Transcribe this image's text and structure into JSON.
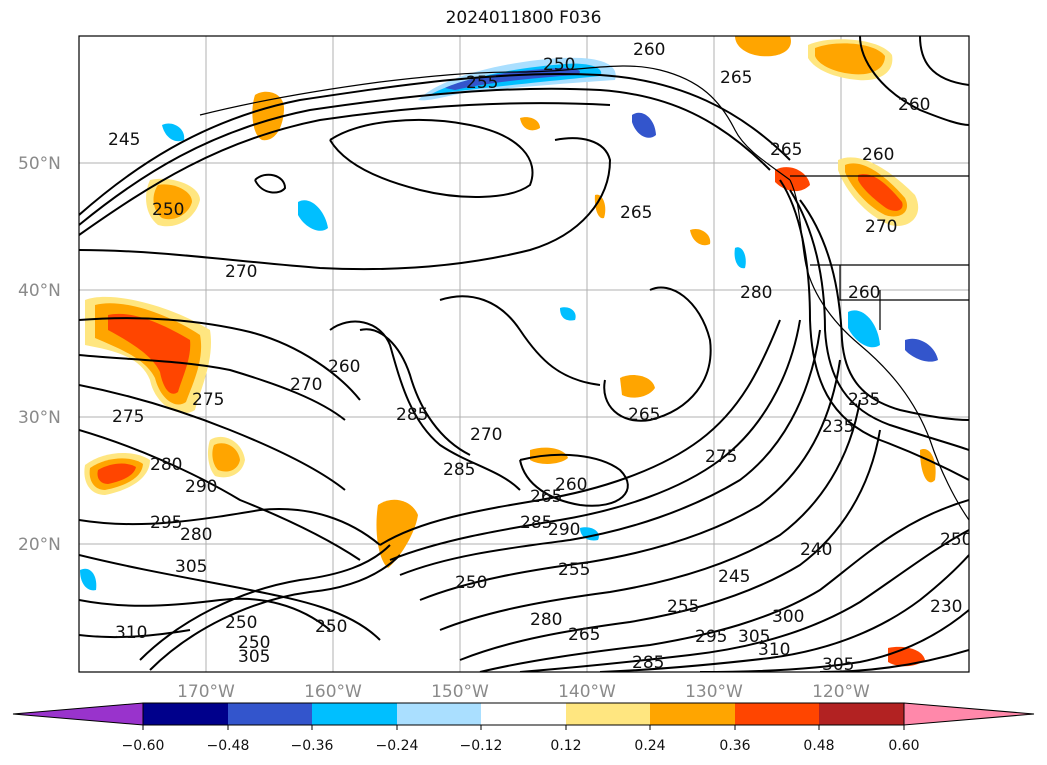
{
  "title": "2024011800 F036",
  "axes": {
    "lat_labels": [
      "50°N",
      "40°N",
      "30°N",
      "20°N"
    ],
    "lon_labels": [
      "170°W",
      "160°W",
      "150°W",
      "140°W",
      "130°W",
      "120°W"
    ]
  },
  "colorbar": {
    "ticks": [
      "−0.60",
      "−0.48",
      "−0.36",
      "−0.24",
      "−0.12",
      "0.12",
      "0.24",
      "0.36",
      "0.48",
      "0.60"
    ],
    "colors": [
      "#9933cc",
      "#00008b",
      "#3355cc",
      "#00bfff",
      "#aadfff",
      "#ffffff",
      "#ffe680",
      "#ffa500",
      "#ff4500",
      "#b22222",
      "#ff88aa"
    ],
    "extend": "both"
  },
  "contour_labels": [
    {
      "text": "260"
    },
    {
      "text": "250"
    },
    {
      "text": "255"
    },
    {
      "text": "265"
    },
    {
      "text": "260"
    },
    {
      "text": "245"
    },
    {
      "text": "250"
    },
    {
      "text": "265"
    },
    {
      "text": "260"
    },
    {
      "text": "265"
    },
    {
      "text": "270"
    },
    {
      "text": "270"
    },
    {
      "text": "280"
    },
    {
      "text": "260"
    },
    {
      "text": "270"
    },
    {
      "text": "260"
    },
    {
      "text": "285"
    },
    {
      "text": "275"
    },
    {
      "text": "275"
    },
    {
      "text": "270"
    },
    {
      "text": "285"
    },
    {
      "text": "265"
    },
    {
      "text": "275"
    },
    {
      "text": "280"
    },
    {
      "text": "290"
    },
    {
      "text": "265"
    },
    {
      "text": "260"
    },
    {
      "text": "285"
    },
    {
      "text": "290"
    },
    {
      "text": "235"
    },
    {
      "text": "235"
    },
    {
      "text": "295"
    },
    {
      "text": "280"
    },
    {
      "text": "305"
    },
    {
      "text": "240"
    },
    {
      "text": "250"
    },
    {
      "text": "255"
    },
    {
      "text": "245"
    },
    {
      "text": "250"
    },
    {
      "text": "310"
    },
    {
      "text": "250"
    },
    {
      "text": "250"
    },
    {
      "text": "305"
    },
    {
      "text": "255"
    },
    {
      "text": "265"
    },
    {
      "text": "280"
    },
    {
      "text": "295"
    },
    {
      "text": "300"
    },
    {
      "text": "305"
    },
    {
      "text": "310"
    },
    {
      "text": "285"
    },
    {
      "text": "305"
    },
    {
      "text": "250"
    },
    {
      "text": "230"
    }
  ]
}
